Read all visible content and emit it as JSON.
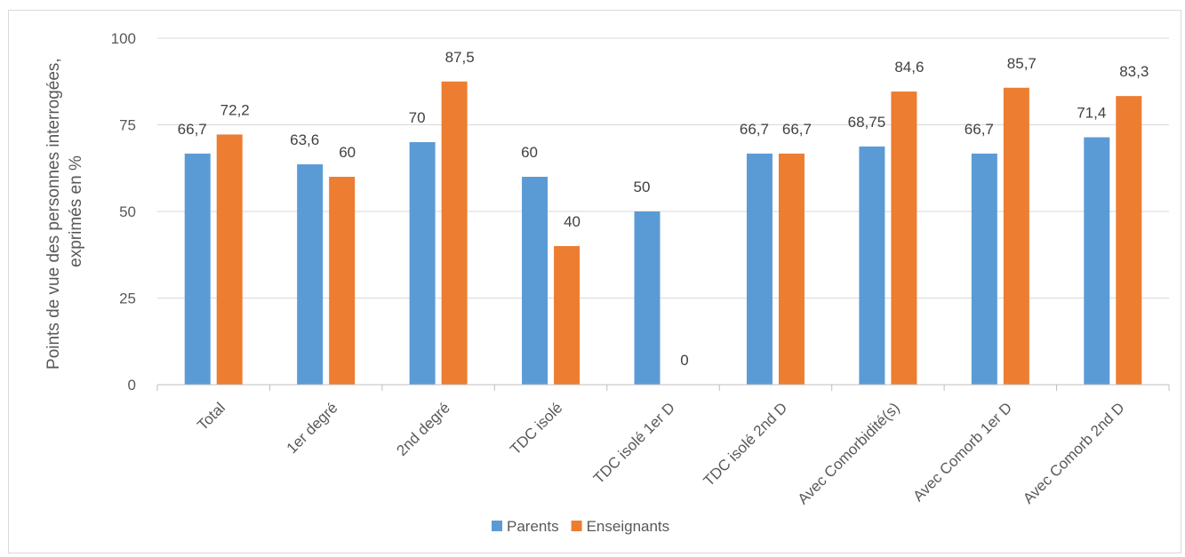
{
  "chart_data": {
    "type": "bar",
    "title": "",
    "ylabel": [
      "Points de vue des personnes interrogées,",
      "exprimés en %"
    ],
    "xlabel": "",
    "ylim": [
      0,
      100
    ],
    "yticks": [
      0,
      25,
      50,
      75,
      100
    ],
    "grid": true,
    "legend_position": "bottom",
    "categories": [
      "Total",
      "1er degré",
      "2nd degré",
      "TDC isolé",
      "TDC isolé 1er D",
      "TDC isolé 2nd D",
      "Avec Comorbidité(s)",
      "Avec Comorb 1er D",
      "Avec Comorb 2nd D"
    ],
    "series": [
      {
        "name": "Parents",
        "color": "#5b9bd5",
        "values": [
          66.7,
          63.6,
          70,
          60,
          50,
          66.7,
          68.75,
          66.7,
          71.4
        ],
        "labels": [
          "66,7",
          "63,6",
          "70",
          "60",
          "50",
          "66,7",
          "68,75",
          "66,7",
          "71,4"
        ]
      },
      {
        "name": "Enseignants",
        "color": "#ed7d31",
        "values": [
          72.2,
          60,
          87.5,
          40,
          0,
          66.7,
          84.6,
          85.7,
          83.3
        ],
        "labels": [
          "72,2",
          "60",
          "87,5",
          "40",
          "0",
          "66,7",
          "84,6",
          "85,7",
          "83,3"
        ]
      }
    ]
  }
}
